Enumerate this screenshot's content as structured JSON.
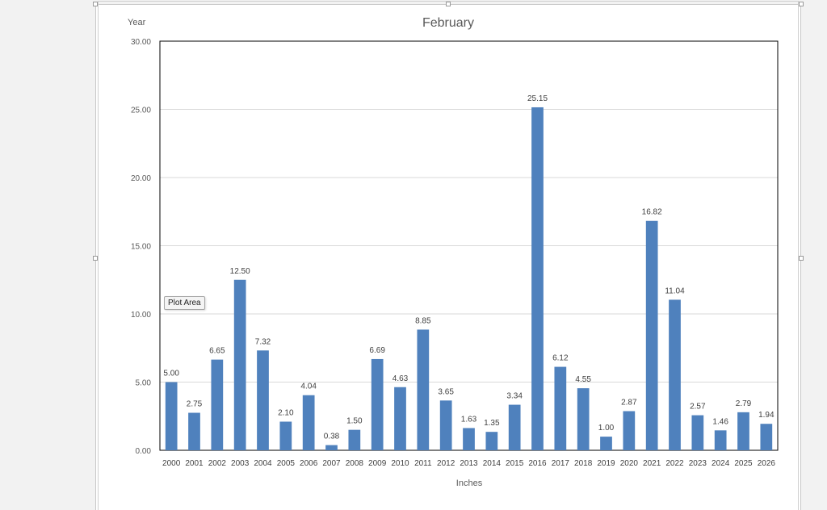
{
  "chart_data": {
    "type": "bar",
    "title": "February",
    "xlabel": "Inches",
    "ylabel": "Year",
    "categories": [
      "2000",
      "2001",
      "2002",
      "2003",
      "2004",
      "2005",
      "2006",
      "2007",
      "2008",
      "2009",
      "2010",
      "2011",
      "2012",
      "2013",
      "2014",
      "2015",
      "2016",
      "2017",
      "2018",
      "2019",
      "2020",
      "2021",
      "2022",
      "2023",
      "2024",
      "2025",
      "2026"
    ],
    "values": [
      5.0,
      2.75,
      6.65,
      12.5,
      7.32,
      2.1,
      4.04,
      0.38,
      1.5,
      6.69,
      4.63,
      8.85,
      3.65,
      1.63,
      1.35,
      3.34,
      25.15,
      6.12,
      4.55,
      1.0,
      2.87,
      16.82,
      11.04,
      2.57,
      1.46,
      2.79,
      1.94
    ],
    "data_labels": [
      "5.00",
      "2.75",
      "6.65",
      "12.50",
      "7.32",
      "2.10",
      "4.04",
      "0.38",
      "1.50",
      "6.69",
      "4.63",
      "8.85",
      "3.65",
      "1.63",
      "1.35",
      "3.34",
      "25.15",
      "6.12",
      "4.55",
      "1.00",
      "2.87",
      "16.82",
      "11.04",
      "2.57",
      "1.46",
      "2.79",
      "1.94"
    ],
    "ylim": [
      0,
      30
    ],
    "yticks": [
      "0.00",
      "5.00",
      "10.00",
      "15.00",
      "20.00",
      "25.00",
      "30.00"
    ],
    "grid": true,
    "bar_color": "#4f81bd",
    "gridline_color": "#d9d9d9"
  },
  "tooltip": {
    "text": "Plot Area"
  }
}
